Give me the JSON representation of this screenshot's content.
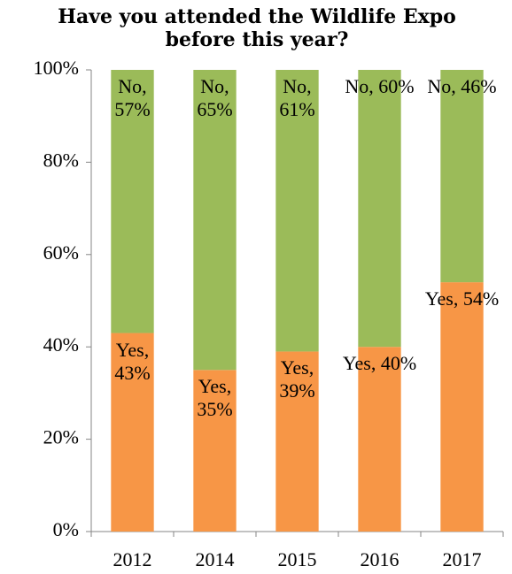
{
  "chart_data": {
    "type": "stacked_bar",
    "title": "Have you attended the Wildlife Expo before this year?",
    "categories": [
      "2012",
      "2014",
      "2015",
      "2016",
      "2017"
    ],
    "series": [
      {
        "color": "#f79646",
        "values": [
          43,
          35,
          39,
          40,
          54
        ],
        "value_labels": [
          "Yes, 43%",
          "Yes, 35%",
          "Yes, 39%",
          "Yes, 40%",
          "Yes, 54%"
        ]
      },
      {
        "color": "#9bbb59",
        "values": [
          57,
          65,
          61,
          60,
          46
        ],
        "value_labels": [
          "No, 57%",
          "No, 65%",
          "No, 61%",
          "No, 60%",
          "No, 46%"
        ]
      }
    ],
    "ylim": [
      0,
      100
    ],
    "yticks": [
      {
        "value": 0,
        "label": "0%"
      },
      {
        "value": 20,
        "label": "20%"
      },
      {
        "value": 40,
        "label": "40%"
      },
      {
        "value": 60,
        "label": "60%"
      },
      {
        "value": 80,
        "label": "80%"
      },
      {
        "value": 100,
        "label": "100%"
      }
    ]
  }
}
